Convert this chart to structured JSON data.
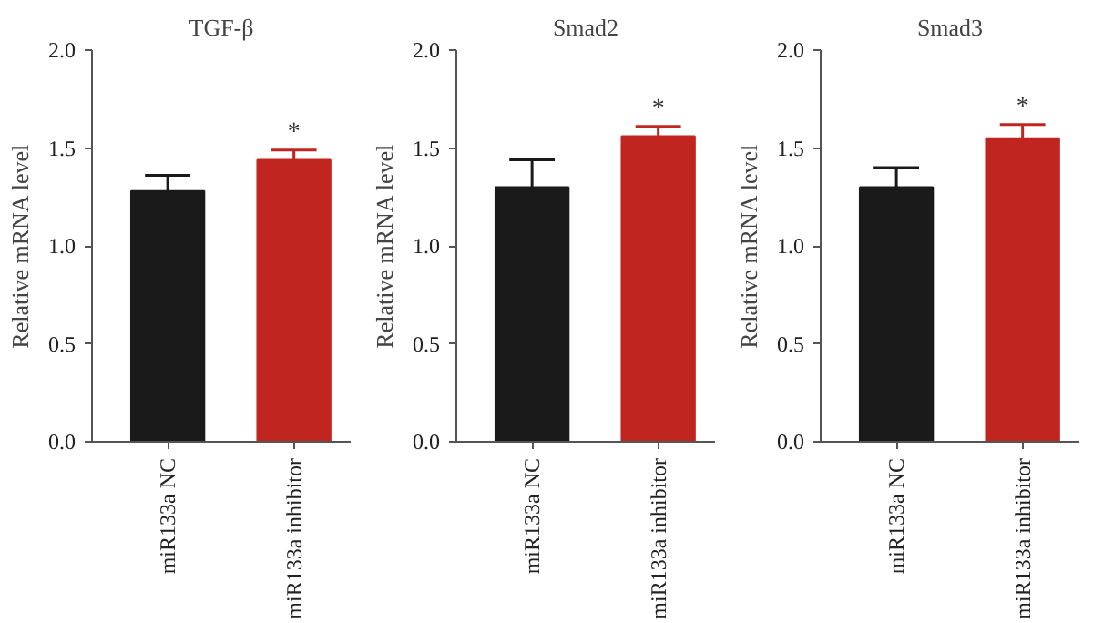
{
  "chart_data": [
    {
      "type": "bar",
      "title": "TGF-β",
      "ylabel": "Relative mRNA level",
      "categories": [
        "miR133a NC",
        "miR133a inhibitor"
      ],
      "values": [
        1.28,
        1.44
      ],
      "colors": [
        "#1a1a1a",
        "#c0251f"
      ],
      "errors": [
        0.08,
        0.05
      ],
      "ylim": [
        0,
        2
      ],
      "yticks": [
        {
          "value": 0,
          "label": "0.0"
        },
        {
          "value": 0.5,
          "label": "0.5"
        },
        {
          "value": 1,
          "label": "1.0"
        },
        {
          "value": 1.5,
          "label": "1.5"
        },
        {
          "value": 2,
          "label": "2.0"
        }
      ],
      "grid": false,
      "annotations": [
        "*"
      ]
    },
    {
      "type": "bar",
      "title": "Smad2",
      "ylabel": "Relative mRNA level",
      "categories": [
        "miR133a NC",
        "miR133a inhibitor"
      ],
      "values": [
        1.3,
        1.56
      ],
      "colors": [
        "#1a1a1a",
        "#c0251f"
      ],
      "errors": [
        0.14,
        0.05
      ],
      "ylim": [
        0,
        2
      ],
      "yticks": [
        {
          "value": 0,
          "label": "0.0"
        },
        {
          "value": 0.5,
          "label": "0.5"
        },
        {
          "value": 1,
          "label": "1.0"
        },
        {
          "value": 1.5,
          "label": "1.5"
        },
        {
          "value": 2,
          "label": "2.0"
        }
      ],
      "grid": false,
      "annotations": [
        "*"
      ]
    },
    {
      "type": "bar",
      "title": "Smad3",
      "ylabel": "Relative mRNA level",
      "categories": [
        "miR133a NC",
        "miR133a inhibitor"
      ],
      "values": [
        1.3,
        1.55
      ],
      "colors": [
        "#1a1a1a",
        "#c0251f"
      ],
      "errors": [
        0.1,
        0.07
      ],
      "ylim": [
        0,
        2
      ],
      "yticks": [
        {
          "value": 0,
          "label": "0.0"
        },
        {
          "value": 0.5,
          "label": "0.5"
        },
        {
          "value": 1,
          "label": "1.0"
        },
        {
          "value": 1.5,
          "label": "1.5"
        },
        {
          "value": 2,
          "label": "2.0"
        }
      ],
      "grid": false,
      "annotations": [
        "*"
      ]
    }
  ]
}
